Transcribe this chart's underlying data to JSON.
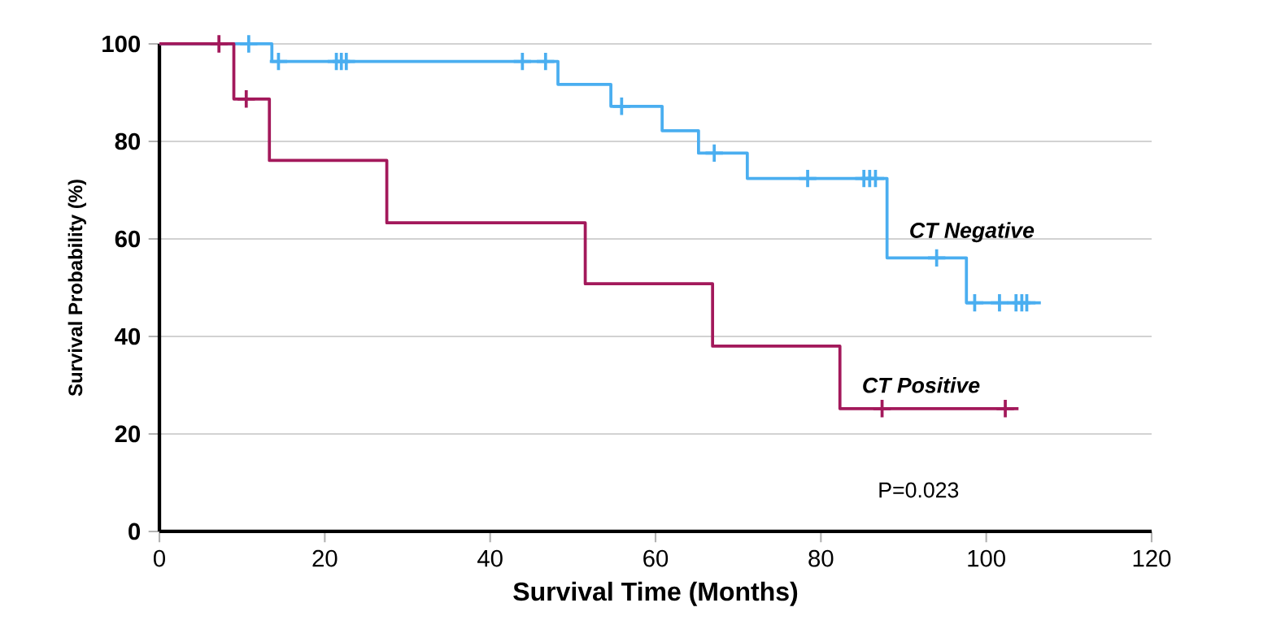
{
  "chart_data": {
    "type": "step",
    "xlabel": "Survival Time (Months)",
    "ylabel": "Survival Probability (%)",
    "xlim": [
      0,
      120
    ],
    "ylim": [
      0,
      100
    ],
    "xticks": [
      0,
      20,
      40,
      60,
      80,
      100,
      120
    ],
    "yticks": [
      0,
      20,
      40,
      60,
      80,
      100
    ],
    "grid": "y",
    "annotations": [
      "P=0.023"
    ],
    "series": [
      {
        "name": "CT Negative",
        "color": "#4aaef0",
        "x": [
          0,
          13.6,
          48.2,
          54.6,
          60.8,
          65.2,
          71.1,
          88.0,
          97.6,
          106.6
        ],
        "values": [
          100,
          96.4,
          91.7,
          87.2,
          82.2,
          77.6,
          72.4,
          56.1,
          46.9,
          46.9
        ]
      },
      {
        "name": "CT Positive",
        "color": "#a3195b",
        "x": [
          0,
          9.0,
          13.3,
          27.5,
          51.5,
          66.9,
          82.3,
          103.9
        ],
        "values": [
          100,
          88.7,
          76.1,
          63.3,
          50.8,
          38.0,
          25.2,
          25.2
        ]
      },
      {
        "type": "scatter",
        "marker": "cross",
        "color": "#4aaef0",
        "x": [
          10.8,
          14.4,
          21.4,
          22.0,
          22.6,
          43.9,
          46.7,
          55.9,
          67.1,
          78.4,
          85.2,
          85.9,
          86.6,
          94.0,
          98.6,
          101.6,
          103.6,
          104.3,
          104.9
        ],
        "values": [
          100,
          96.4,
          96.4,
          96.4,
          96.4,
          96.4,
          96.4,
          87.2,
          77.6,
          72.4,
          72.4,
          72.4,
          72.4,
          56.1,
          46.9,
          46.9,
          46.9,
          46.9,
          46.9
        ]
      },
      {
        "type": "scatter",
        "marker": "cross",
        "color": "#a3195b",
        "x": [
          7.2,
          10.5,
          87.4,
          102.3
        ],
        "values": [
          100,
          88.7,
          25.2,
          25.2
        ]
      }
    ]
  }
}
